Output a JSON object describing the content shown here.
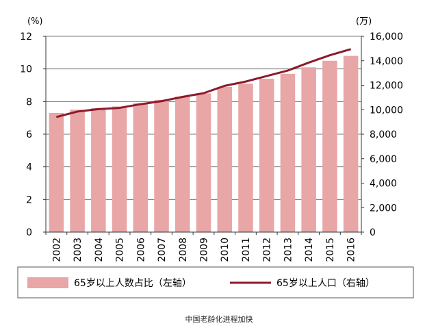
{
  "caption": "中国老龄化进程加快",
  "chart_data": {
    "type": "bar",
    "categories": [
      "2002",
      "2003",
      "2004",
      "2005",
      "2006",
      "2007",
      "2008",
      "2009",
      "2010",
      "2011",
      "2012",
      "2013",
      "2014",
      "2015",
      "2016"
    ],
    "left_unit": "(%)",
    "right_unit": "(万)",
    "ylim_left": [
      0,
      12
    ],
    "ylim_right": [
      0,
      16000
    ],
    "left_ticks": [
      "0",
      "2",
      "4",
      "6",
      "8",
      "10",
      "12"
    ],
    "right_ticks": [
      "0",
      "2,000",
      "4,000",
      "6,000",
      "8,000",
      "10,000",
      "12,000",
      "14,000",
      "16,000"
    ],
    "grid": true,
    "legend_position": "bottom",
    "series": [
      {
        "name": "65岁以上人数占比（左轴）",
        "type": "bar",
        "axis": "left",
        "color": "#e8a6a6",
        "values": [
          7.3,
          7.5,
          7.6,
          7.7,
          7.9,
          8.1,
          8.3,
          8.5,
          8.9,
          9.1,
          9.4,
          9.7,
          10.1,
          10.5,
          10.8
        ]
      },
      {
        "name": "65岁以上人口（右轴）",
        "type": "line",
        "axis": "right",
        "color": "#8b1a2b",
        "values": [
          9400,
          9850,
          10050,
          10150,
          10450,
          10700,
          11050,
          11350,
          11950,
          12300,
          12750,
          13200,
          13850,
          14450,
          14950
        ]
      }
    ]
  }
}
